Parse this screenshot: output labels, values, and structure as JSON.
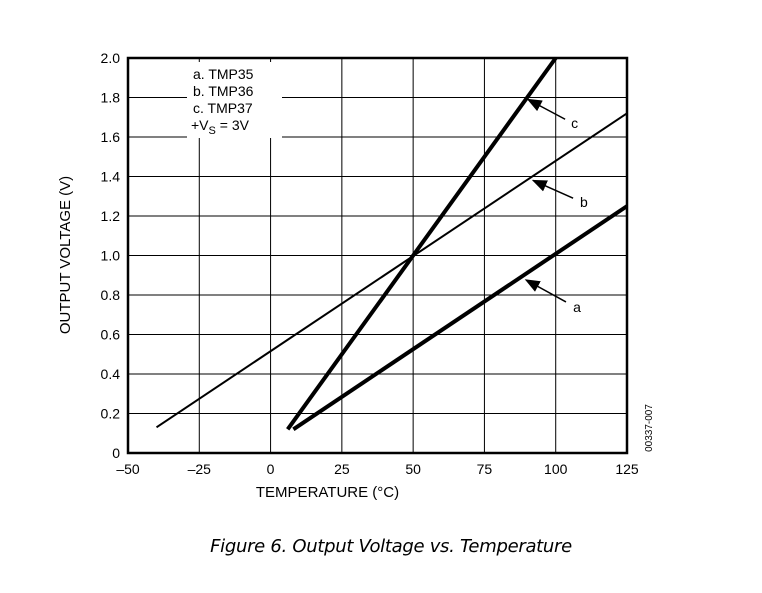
{
  "chart_data": {
    "type": "line",
    "title": "",
    "caption": "Figure 6. Output Voltage vs. Temperature",
    "xlabel": "TEMPERATURE (°C)",
    "ylabel": "OUTPUT VOLTAGE (V)",
    "xlim": [
      -50,
      125
    ],
    "ylim": [
      0,
      2.0
    ],
    "xticks": [
      "–50",
      "–25",
      "0",
      "25",
      "50",
      "75",
      "100",
      "125"
    ],
    "xtick_values": [
      -50,
      -25,
      0,
      25,
      50,
      75,
      100,
      125
    ],
    "yticks": [
      "0",
      "0.2",
      "0.4",
      "0.6",
      "0.8",
      "1.0",
      "1.2",
      "1.4",
      "1.6",
      "1.8",
      "2.0"
    ],
    "ytick_values": [
      0,
      0.2,
      0.4,
      0.6,
      0.8,
      1.0,
      1.2,
      1.4,
      1.6,
      1.8,
      2.0
    ],
    "grid": true,
    "legend": {
      "placement": "top-left",
      "entries": [
        "a.  TMP35",
        "b.  TMP36",
        "c.  TMP37"
      ],
      "supply_prefix": "+V",
      "supply_sub": "S",
      "supply_suffix": " = 3V"
    },
    "series": [
      {
        "name": "a",
        "label": "TMP35",
        "weight": "heavy",
        "x": [
          8,
          125
        ],
        "y": [
          0.12,
          1.25
        ]
      },
      {
        "name": "b",
        "label": "TMP36",
        "weight": "light",
        "x": [
          -40,
          125
        ],
        "y": [
          0.13,
          1.72
        ]
      },
      {
        "name": "c",
        "label": "TMP37",
        "weight": "heavy",
        "x": [
          6,
          100
        ],
        "y": [
          0.12,
          2.0
        ]
      }
    ],
    "annotations": [
      {
        "text": "c",
        "label_at": [
          105.4,
          1.67
        ],
        "tail": [
          103.3,
          1.69
        ],
        "tip": [
          90.3,
          1.79
        ]
      },
      {
        "text": "b",
        "label_at": [
          108.5,
          1.27
        ],
        "tail": [
          106.1,
          1.29
        ],
        "tip": [
          92.1,
          1.38
        ]
      },
      {
        "text": "a",
        "label_at": [
          106.1,
          0.74
        ],
        "tail": [
          103.6,
          0.765
        ],
        "tip": [
          89.6,
          0.876
        ]
      }
    ],
    "side_code": "00337-007"
  }
}
